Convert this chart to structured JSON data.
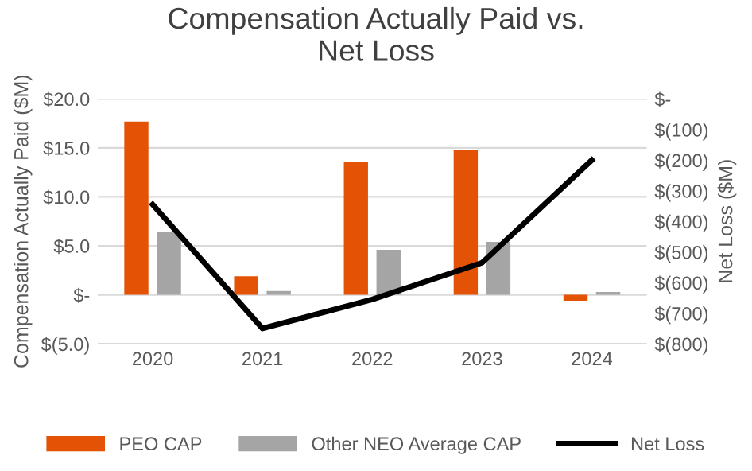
{
  "chart_data": {
    "type": "bar",
    "title": "Compensation Actually Paid vs.\nNet Loss",
    "ylabel": "Compensation Actually Paid ($M)",
    "y2label": "Net Loss ($M)",
    "categories": [
      "2020",
      "2021",
      "2022",
      "2023",
      "2024"
    ],
    "series": [
      {
        "name": "PEO CAP",
        "color": "#e35205",
        "values": [
          17.7,
          1.9,
          13.6,
          14.8,
          -0.6
        ]
      },
      {
        "name": "Other NEO Average CAP",
        "color": "#a5a5a5",
        "values": [
          6.4,
          0.4,
          4.6,
          5.4,
          0.3
        ]
      },
      {
        "name": "Net Loss",
        "type": "line",
        "axis": "y2",
        "color": "#000000",
        "values": [
          -345,
          -750,
          -655,
          -535,
          -200
        ]
      }
    ],
    "ylim": [
      -5,
      20
    ],
    "yticks": [
      {
        "value": -5,
        "label": "$(5.0)"
      },
      {
        "value": 0,
        "label": "$-"
      },
      {
        "value": 5,
        "label": "$5.0"
      },
      {
        "value": 10,
        "label": "$10.0"
      },
      {
        "value": 15,
        "label": "$15.0"
      },
      {
        "value": 20,
        "label": "$20.0"
      }
    ],
    "y2lim": [
      -800,
      0
    ],
    "y2ticks": [
      {
        "value": -800,
        "label": "$(800)"
      },
      {
        "value": -700,
        "label": "$(700)"
      },
      {
        "value": -600,
        "label": "$(600)"
      },
      {
        "value": -500,
        "label": "$(500)"
      },
      {
        "value": -400,
        "label": "$(400)"
      },
      {
        "value": -300,
        "label": "$(300)"
      },
      {
        "value": -200,
        "label": "$(200)"
      },
      {
        "value": -100,
        "label": "$(100)"
      },
      {
        "value": 0,
        "label": "$-"
      }
    ],
    "grid": "y",
    "legend": "bottom"
  }
}
